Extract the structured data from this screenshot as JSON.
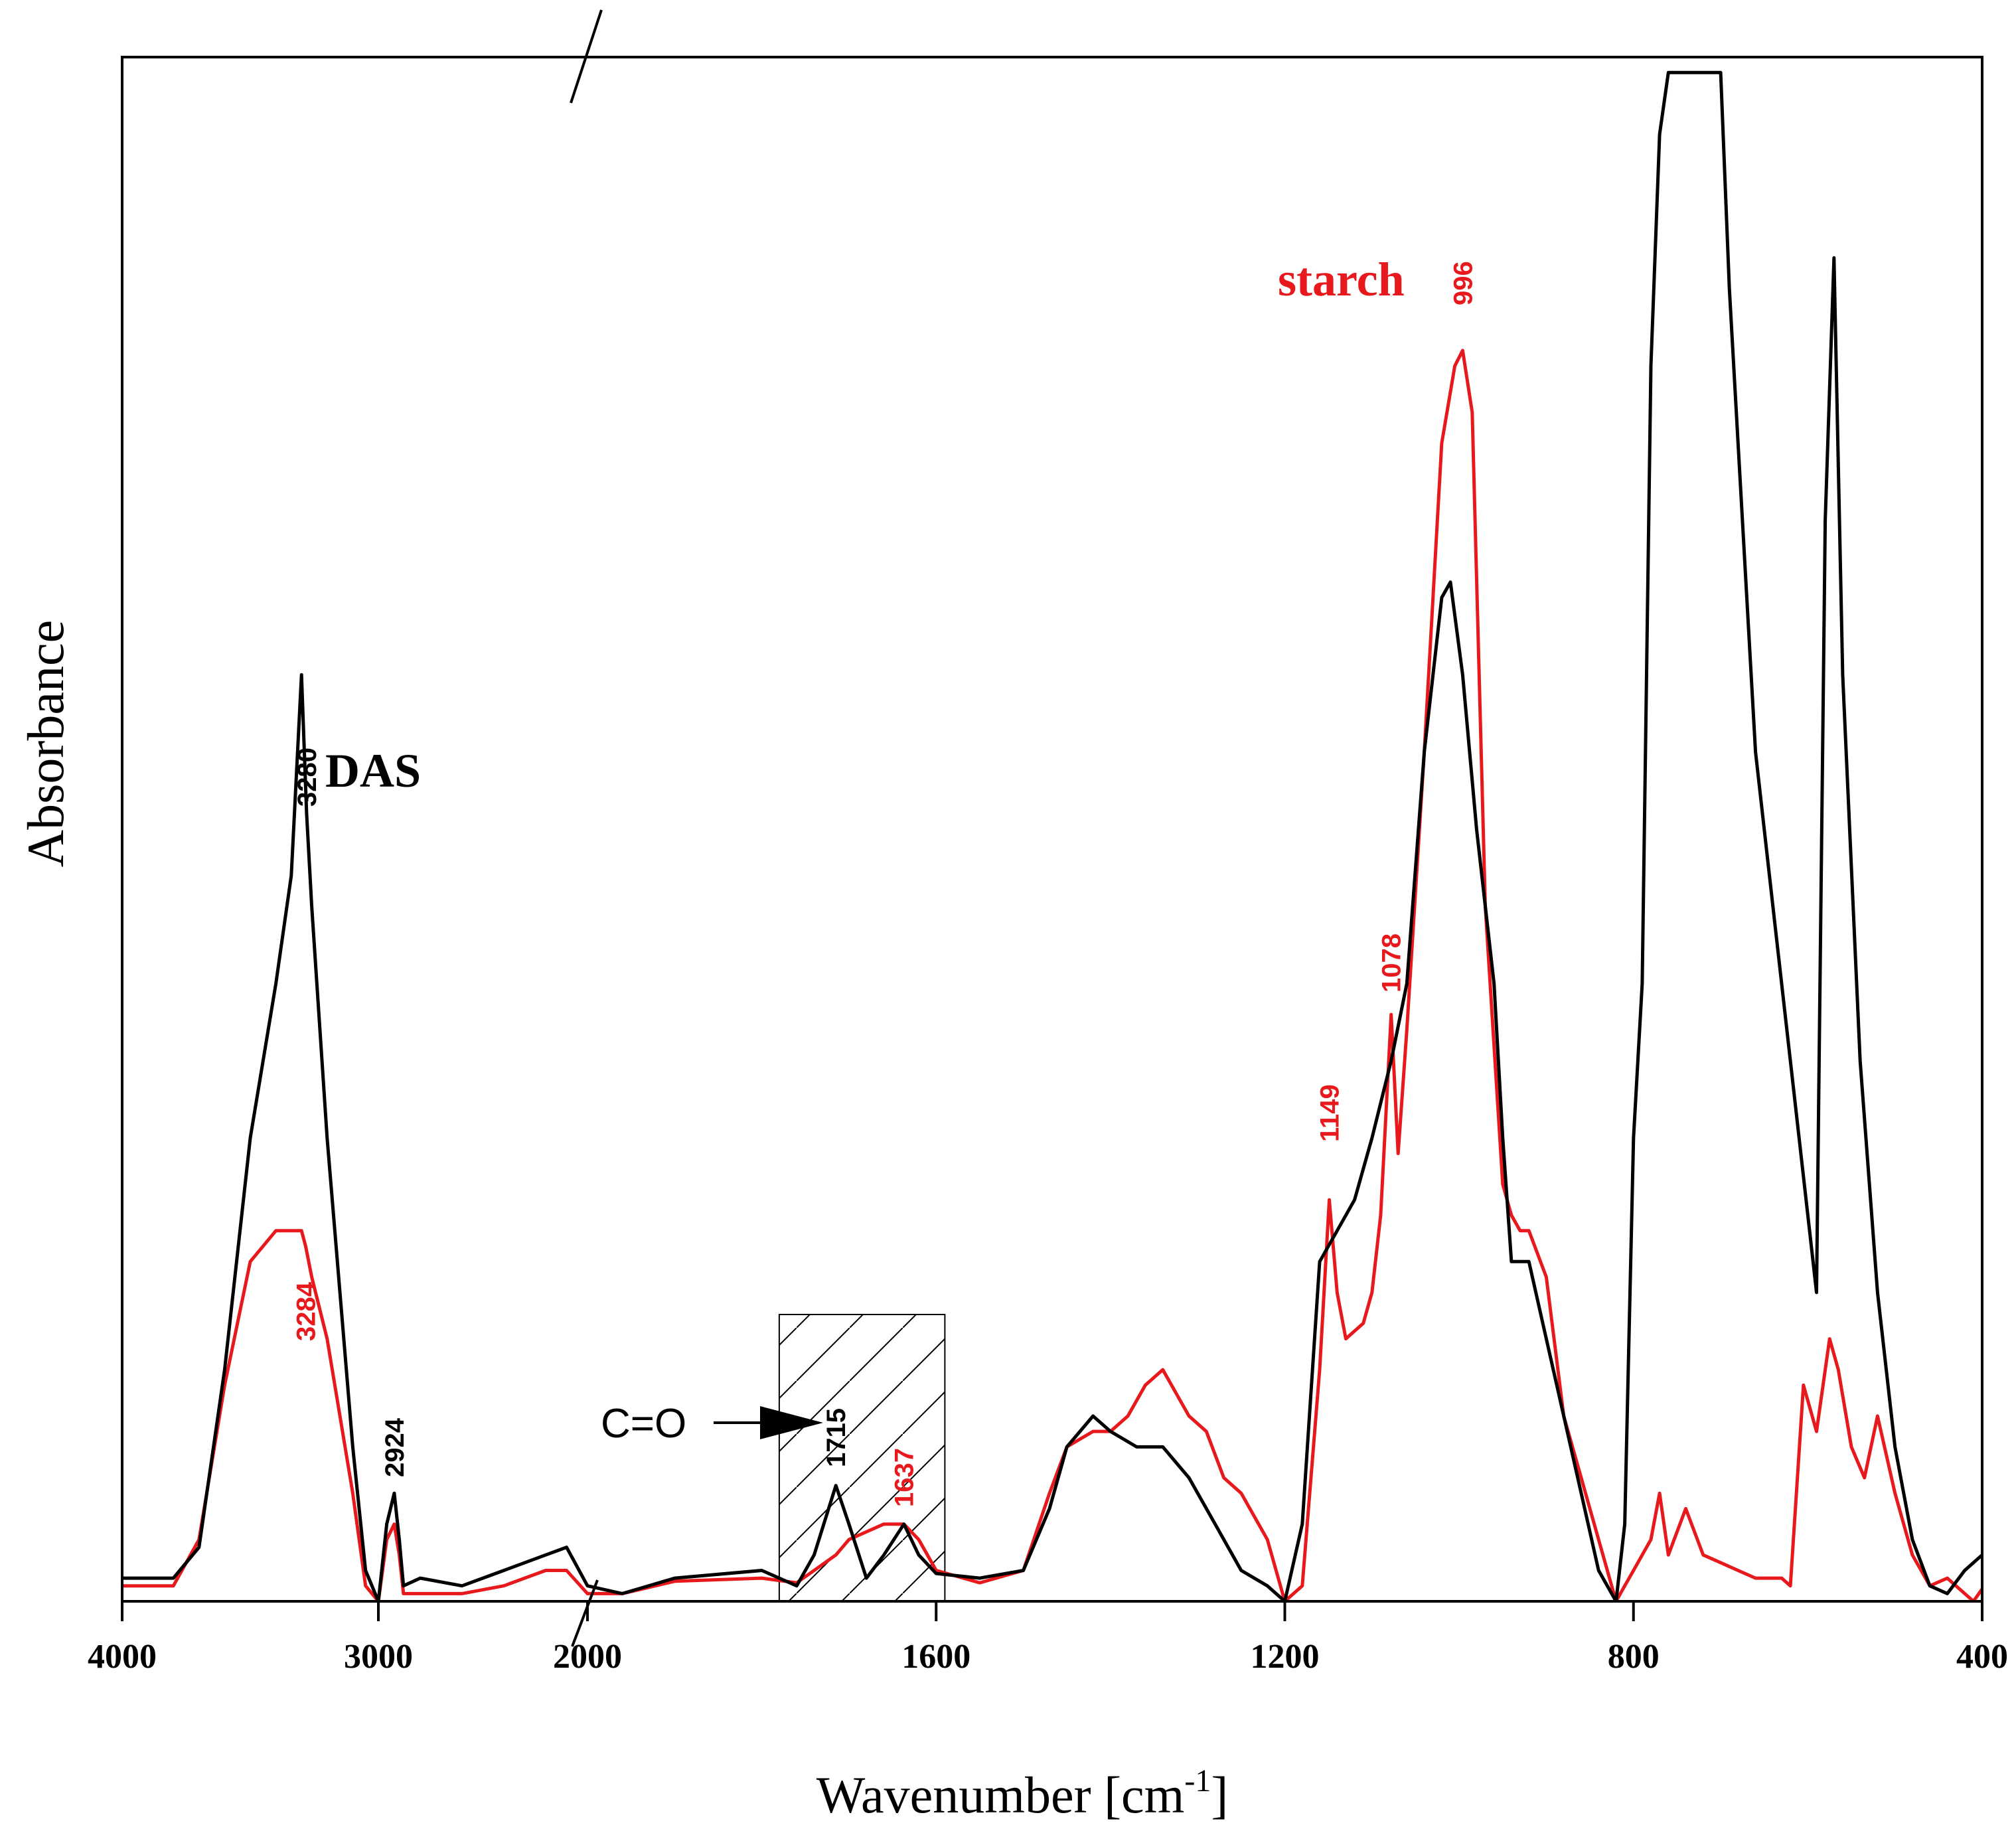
{
  "chart_data": {
    "type": "line",
    "xlabel": "Wavenumber [cm",
    "xlabel_sup": "-1",
    "xlabel_close": "]",
    "ylabel": "Absorbance",
    "x_axis": "reversed, broken between 3000 and 2000",
    "xlim": [
      4000,
      400
    ],
    "ticks": [
      {
        "value": 4000,
        "label": "4000"
      },
      {
        "value": 3000,
        "label": "3000"
      },
      {
        "value": 2000,
        "label": "2000"
      },
      {
        "value": 1600,
        "label": "1600"
      },
      {
        "value": 1200,
        "label": "1200"
      },
      {
        "value": 800,
        "label": "800"
      },
      {
        "value": 400,
        "label": "400"
      }
    ],
    "ylim": [
      0,
      1
    ],
    "grid": false,
    "series": [
      {
        "name": "DAS",
        "color": "#000000",
        "points": [
          [
            4000,
            0.015
          ],
          [
            3800,
            0.015
          ],
          [
            3700,
            0.035
          ],
          [
            3600,
            0.15
          ],
          [
            3500,
            0.3
          ],
          [
            3400,
            0.4
          ],
          [
            3340,
            0.47
          ],
          [
            3300,
            0.6
          ],
          [
            3280,
            0.51
          ],
          [
            3260,
            0.45
          ],
          [
            3200,
            0.3
          ],
          [
            3150,
            0.2
          ],
          [
            3100,
            0.1
          ],
          [
            3050,
            0.02
          ],
          [
            3000,
            0.0
          ],
          [
            2960,
            0.05
          ],
          [
            2924,
            0.07
          ],
          [
            2900,
            0.04
          ],
          [
            2880,
            0.01
          ],
          [
            2800,
            0.015
          ],
          [
            2600,
            0.01
          ],
          [
            2400,
            0.02
          ],
          [
            2200,
            0.03
          ],
          [
            2100,
            0.035
          ],
          [
            2000,
            0.01
          ],
          [
            1960,
            0.005
          ],
          [
            1900,
            0.015
          ],
          [
            1800,
            0.02
          ],
          [
            1760,
            0.01
          ],
          [
            1740,
            0.03
          ],
          [
            1715,
            0.075
          ],
          [
            1700,
            0.05
          ],
          [
            1680,
            0.015
          ],
          [
            1660,
            0.03
          ],
          [
            1637,
            0.05
          ],
          [
            1620,
            0.03
          ],
          [
            1600,
            0.018
          ],
          [
            1550,
            0.015
          ],
          [
            1500,
            0.02
          ],
          [
            1470,
            0.06
          ],
          [
            1450,
            0.1
          ],
          [
            1420,
            0.12
          ],
          [
            1400,
            0.11
          ],
          [
            1370,
            0.1
          ],
          [
            1340,
            0.1
          ],
          [
            1310,
            0.08
          ],
          [
            1280,
            0.05
          ],
          [
            1250,
            0.02
          ],
          [
            1220,
            0.01
          ],
          [
            1200,
            0.0
          ],
          [
            1180,
            0.05
          ],
          [
            1160,
            0.22
          ],
          [
            1140,
            0.24
          ],
          [
            1120,
            0.26
          ],
          [
            1100,
            0.3
          ],
          [
            1078,
            0.35
          ],
          [
            1060,
            0.4
          ],
          [
            1040,
            0.55
          ],
          [
            1020,
            0.65
          ],
          [
            1010,
            0.66
          ],
          [
            996,
            0.6
          ],
          [
            980,
            0.5
          ],
          [
            960,
            0.4
          ],
          [
            950,
            0.3
          ],
          [
            940,
            0.22
          ],
          [
            920,
            0.22
          ],
          [
            900,
            0.17
          ],
          [
            880,
            0.12
          ],
          [
            860,
            0.07
          ],
          [
            840,
            0.02
          ],
          [
            820,
            0.0
          ],
          [
            810,
            0.05
          ],
          [
            800,
            0.3
          ],
          [
            790,
            0.4
          ],
          [
            780,
            0.8
          ],
          [
            770,
            0.95
          ],
          [
            760,
            0.99
          ],
          [
            740,
            0.99
          ],
          [
            720,
            0.99
          ],
          [
            700,
            0.99
          ],
          [
            690,
            0.85
          ],
          [
            680,
            0.75
          ],
          [
            660,
            0.55
          ],
          [
            640,
            0.45
          ],
          [
            620,
            0.35
          ],
          [
            600,
            0.25
          ],
          [
            590,
            0.2
          ],
          [
            580,
            0.7
          ],
          [
            570,
            0.87
          ],
          [
            560,
            0.6
          ],
          [
            540,
            0.35
          ],
          [
            520,
            0.2
          ],
          [
            500,
            0.1
          ],
          [
            480,
            0.04
          ],
          [
            460,
            0.01
          ],
          [
            440,
            0.005
          ],
          [
            420,
            0.02
          ],
          [
            400,
            0.03
          ]
        ]
      },
      {
        "name": "starch",
        "color": "#e8191c",
        "points": [
          [
            4000,
            0.01
          ],
          [
            3800,
            0.01
          ],
          [
            3700,
            0.04
          ],
          [
            3600,
            0.14
          ],
          [
            3500,
            0.22
          ],
          [
            3400,
            0.24
          ],
          [
            3300,
            0.24
          ],
          [
            3284,
            0.23
          ],
          [
            3260,
            0.21
          ],
          [
            3200,
            0.17
          ],
          [
            3150,
            0.12
          ],
          [
            3100,
            0.07
          ],
          [
            3050,
            0.01
          ],
          [
            3000,
            0.0
          ],
          [
            2960,
            0.04
          ],
          [
            2924,
            0.05
          ],
          [
            2900,
            0.03
          ],
          [
            2880,
            0.005
          ],
          [
            2800,
            0.005
          ],
          [
            2600,
            0.005
          ],
          [
            2400,
            0.01
          ],
          [
            2200,
            0.02
          ],
          [
            2100,
            0.02
          ],
          [
            2000,
            0.005
          ],
          [
            1960,
            0.005
          ],
          [
            1900,
            0.013
          ],
          [
            1800,
            0.015
          ],
          [
            1760,
            0.012
          ],
          [
            1740,
            0.02
          ],
          [
            1715,
            0.03
          ],
          [
            1700,
            0.04
          ],
          [
            1660,
            0.05
          ],
          [
            1637,
            0.05
          ],
          [
            1620,
            0.04
          ],
          [
            1600,
            0.02
          ],
          [
            1550,
            0.012
          ],
          [
            1500,
            0.02
          ],
          [
            1470,
            0.07
          ],
          [
            1450,
            0.1
          ],
          [
            1420,
            0.11
          ],
          [
            1400,
            0.11
          ],
          [
            1380,
            0.12
          ],
          [
            1360,
            0.14
          ],
          [
            1340,
            0.15
          ],
          [
            1310,
            0.12
          ],
          [
            1290,
            0.11
          ],
          [
            1270,
            0.08
          ],
          [
            1250,
            0.07
          ],
          [
            1220,
            0.04
          ],
          [
            1200,
            0.0
          ],
          [
            1180,
            0.01
          ],
          [
            1160,
            0.15
          ],
          [
            1149,
            0.26
          ],
          [
            1140,
            0.2
          ],
          [
            1130,
            0.17
          ],
          [
            1110,
            0.18
          ],
          [
            1100,
            0.2
          ],
          [
            1090,
            0.25
          ],
          [
            1078,
            0.38
          ],
          [
            1070,
            0.29
          ],
          [
            1060,
            0.37
          ],
          [
            1040,
            0.55
          ],
          [
            1020,
            0.75
          ],
          [
            1005,
            0.8
          ],
          [
            996,
            0.81
          ],
          [
            985,
            0.77
          ],
          [
            970,
            0.45
          ],
          [
            950,
            0.27
          ],
          [
            940,
            0.25
          ],
          [
            930,
            0.24
          ],
          [
            920,
            0.24
          ],
          [
            900,
            0.21
          ],
          [
            880,
            0.12
          ],
          [
            860,
            0.08
          ],
          [
            840,
            0.04
          ],
          [
            820,
            0.0
          ],
          [
            810,
            0.01
          ],
          [
            800,
            0.02
          ],
          [
            790,
            0.03
          ],
          [
            780,
            0.04
          ],
          [
            770,
            0.07
          ],
          [
            760,
            0.03
          ],
          [
            740,
            0.06
          ],
          [
            720,
            0.03
          ],
          [
            700,
            0.025
          ],
          [
            680,
            0.02
          ],
          [
            660,
            0.015
          ],
          [
            640,
            0.015
          ],
          [
            630,
            0.015
          ],
          [
            620,
            0.01
          ],
          [
            605,
            0.14
          ],
          [
            590,
            0.11
          ],
          [
            575,
            0.17
          ],
          [
            565,
            0.15
          ],
          [
            550,
            0.1
          ],
          [
            535,
            0.08
          ],
          [
            520,
            0.12
          ],
          [
            500,
            0.07
          ],
          [
            480,
            0.03
          ],
          [
            460,
            0.01
          ],
          [
            440,
            0.015
          ],
          [
            430,
            0.01
          ],
          [
            410,
            0.0
          ],
          [
            400,
            0.008
          ]
        ]
      }
    ],
    "annotations": [
      {
        "text": "3280",
        "x": 3280,
        "series": "DAS"
      },
      {
        "text": "3284",
        "x": 3284,
        "series": "starch"
      },
      {
        "text": "2924",
        "x": 2924,
        "series": "DAS"
      },
      {
        "text": "1715",
        "x": 1715,
        "series": "DAS"
      },
      {
        "text": "1637",
        "x": 1637,
        "series": "starch"
      },
      {
        "text": "1149",
        "x": 1149,
        "series": "starch"
      },
      {
        "text": "1078",
        "x": 1078,
        "series": "starch"
      },
      {
        "text": "996",
        "x": 996,
        "series": "starch"
      }
    ],
    "co_label": "C=O",
    "hatched_region": [
      1780,
      1590
    ]
  }
}
